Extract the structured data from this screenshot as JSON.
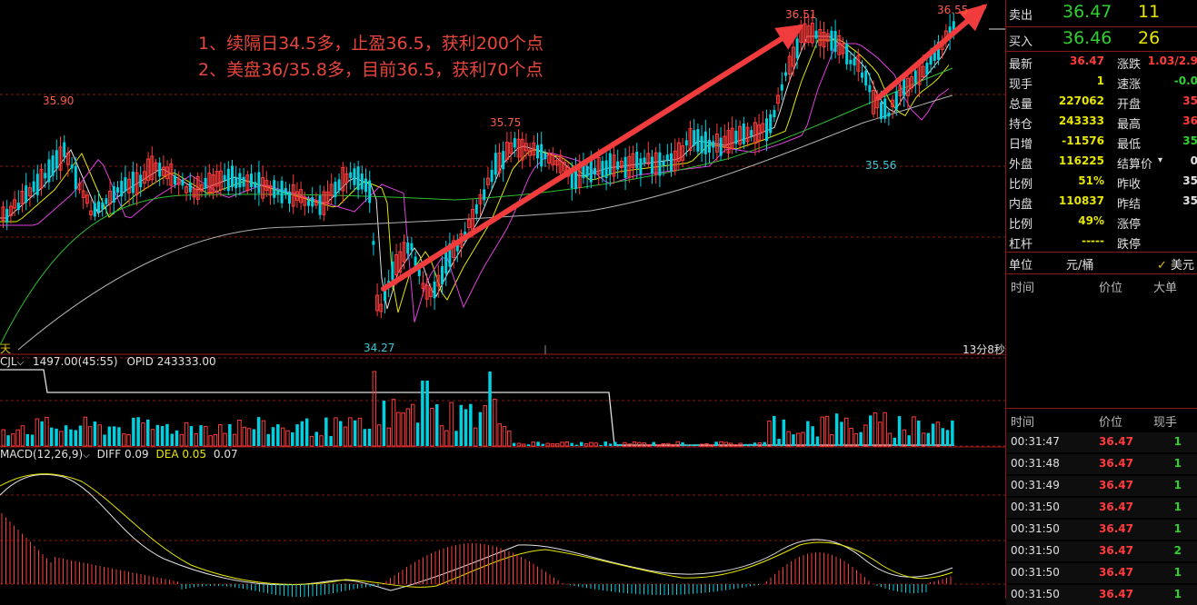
{
  "annotations": {
    "line1": "1、续隔日34.5多，止盈36.5，获利200个点",
    "line2": "2、美盘36/35.8多，目前36.5，获利70个点"
  },
  "price_labels": {
    "high_left": "35.90",
    "high_mid": "35.75",
    "low_mid": "34.27",
    "peak1": "36.51",
    "low_right": "35.56",
    "peak2": "36.55"
  },
  "status": {
    "period_label": "天",
    "countdown": "13分8秒"
  },
  "volume_header": {
    "name": "CJL",
    "value": "1497.00(45:55)",
    "opid": "OPID 243333.00"
  },
  "macd_header": {
    "name": "MACD(12,26,9)",
    "diff": "DIFF 0.09",
    "dea": "DEA 0.05",
    "macd": "0.07"
  },
  "quote": {
    "sell_label": "卖出",
    "sell_price": "36.47",
    "sell_vol": "11",
    "buy_label": "买入",
    "buy_price": "36.46",
    "buy_vol": "26",
    "stats_left": [
      {
        "label": "最新",
        "value": "36.47",
        "color": "red"
      },
      {
        "label": "现手",
        "value": "1",
        "color": "yellow"
      },
      {
        "label": "总量",
        "value": "227062",
        "color": "yellow"
      },
      {
        "label": "持仓",
        "value": "243333",
        "color": "yellow"
      },
      {
        "label": "日增",
        "value": "-11576",
        "color": "yellow"
      },
      {
        "label": "外盘",
        "value": "116225",
        "color": "yellow"
      },
      {
        "label": "比例",
        "value": "51%",
        "color": "yellow"
      },
      {
        "label": "内盘",
        "value": "110837",
        "color": "yellow"
      },
      {
        "label": "比例",
        "value": "49%",
        "color": "yellow"
      },
      {
        "label": "杠杆",
        "value": "-----",
        "color": "yellow"
      }
    ],
    "stats_right": [
      {
        "label": "涨跌",
        "value": "1.03/2.9",
        "color": "red"
      },
      {
        "label": "速涨",
        "value": "-0.0",
        "color": "green"
      },
      {
        "label": "开盘",
        "value": "35",
        "color": "red"
      },
      {
        "label": "最高",
        "value": "36",
        "color": "red"
      },
      {
        "label": "最低",
        "value": "35",
        "color": "green"
      },
      {
        "label": "结算价",
        "value": "0",
        "color": "white"
      },
      {
        "label": "昨收",
        "value": "35",
        "color": "white"
      },
      {
        "label": "昨结",
        "value": "35",
        "color": "white"
      },
      {
        "label": "涨停",
        "value": "",
        "color": "white"
      },
      {
        "label": "跌停",
        "value": "",
        "color": "white"
      }
    ],
    "unit_label": "单位",
    "unit_value": "元/桶",
    "currency": "美元"
  },
  "ticks_header": {
    "time": "时间",
    "price": "价位",
    "size": "大单"
  },
  "ticks2_header": {
    "time": "时间",
    "price": "价位",
    "size": "现手"
  },
  "ticks": [
    {
      "time": "00:31:47",
      "price": "36.47",
      "size": "1",
      "color": "green"
    },
    {
      "time": "00:31:48",
      "price": "36.47",
      "size": "1",
      "color": "green"
    },
    {
      "time": "00:31:49",
      "price": "36.47",
      "size": "1",
      "color": "green"
    },
    {
      "time": "00:31:50",
      "price": "36.47",
      "size": "1",
      "color": "green"
    },
    {
      "time": "00:31:50",
      "price": "36.47",
      "size": "1",
      "color": "green"
    },
    {
      "time": "00:31:50",
      "price": "36.47",
      "size": "2",
      "color": "green"
    },
    {
      "time": "00:31:50",
      "price": "36.47",
      "size": "1",
      "color": "green"
    },
    {
      "time": "00:31:50",
      "price": "36.47",
      "size": "1",
      "color": "green"
    }
  ],
  "colors": {
    "up": "#ff3b3b",
    "down": "#00d0e0",
    "arrow": "#f03c3c",
    "grid": "#8a1818"
  }
}
